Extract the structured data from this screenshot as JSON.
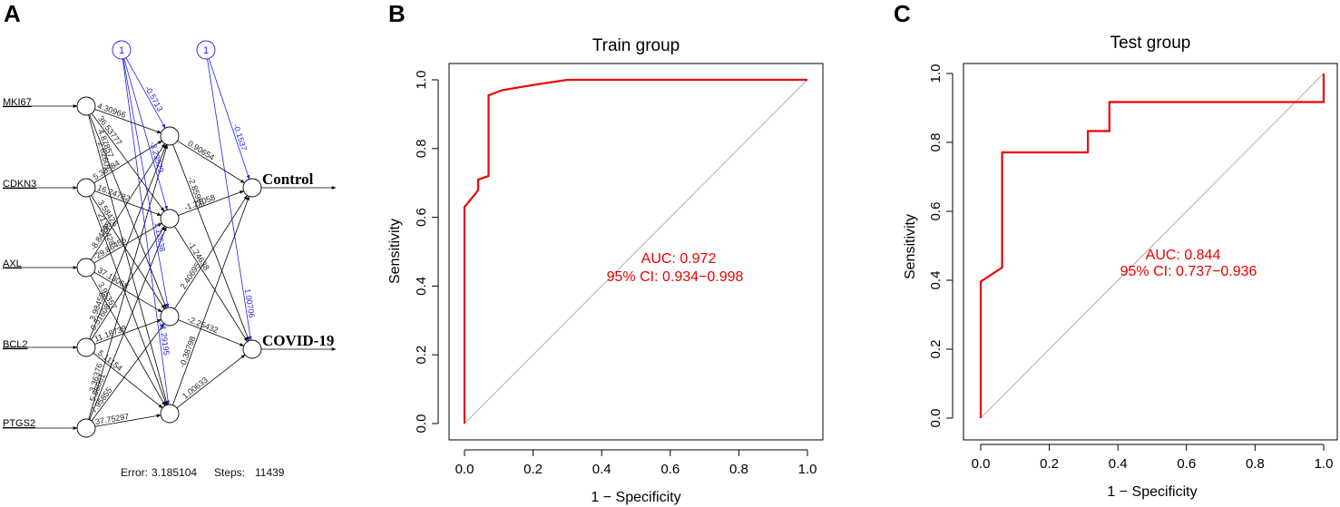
{
  "panels": {
    "a": "A",
    "b": "B",
    "c": "C"
  },
  "network": {
    "inputs": [
      "MKI67",
      "CDKN3",
      "AXL",
      "BCL2",
      "PTGS2"
    ],
    "outputs": [
      "Control",
      "COVID-19"
    ],
    "bias_label": "1",
    "hidden_count": 4,
    "weights_input_hidden": [
      [
        "4.30966",
        "36.53777",
        "4.87857",
        "2.62601"
      ],
      [
        "5.36384",
        "16.24782",
        "3.58426",
        "21.95428"
      ],
      [
        "-8.84295",
        "-29.86456",
        "37.13068",
        "3.95357"
      ],
      [
        "3.98459",
        "0.51608",
        "11.18739",
        "5.11154"
      ],
      [
        "3.36376",
        "5.56061",
        "7.95855",
        "37.75297"
      ]
    ],
    "bias_hidden": [
      "-0.5713",
      "-3.23529",
      "1.12638",
      "11.29195"
    ],
    "weights_hidden_output": [
      [
        "0.90654",
        "-2.85996"
      ],
      [
        "-1.27058",
        "-1.24638"
      ],
      [
        "2.40695",
        "-2.25432"
      ],
      [
        "-0.38798",
        "1.00633"
      ]
    ],
    "bias_output": [
      "-0.1537",
      "1.00706"
    ],
    "error_label": "Error:",
    "error": "3.185104",
    "steps_label": "Steps:",
    "steps": "11439"
  },
  "chart_data": [
    {
      "type": "line",
      "title": "Train group",
      "xlabel": "1 − Specificity",
      "ylabel": "Sensitivity",
      "xlim": [
        0,
        1
      ],
      "ylim": [
        0,
        1
      ],
      "xticks": [
        "0.0",
        "0.2",
        "0.4",
        "0.6",
        "0.8",
        "1.0"
      ],
      "yticks": [
        "0.0",
        "0.2",
        "0.4",
        "0.6",
        "0.8",
        "1.0"
      ],
      "series": [
        {
          "name": "ROC",
          "color": "#ee0000",
          "x": [
            0,
            0,
            0.033,
            0.04,
            0.04,
            0.07,
            0.07,
            0.11,
            0.2,
            0.3,
            1.0
          ],
          "y": [
            0,
            0.63,
            0.67,
            0.68,
            0.71,
            0.72,
            0.955,
            0.97,
            0.985,
            1.0,
            1.0
          ]
        },
        {
          "name": "reference",
          "color": "#b0b0b0",
          "x": [
            0,
            1
          ],
          "y": [
            0,
            1
          ]
        }
      ],
      "annotations": [
        "AUC: 0.972",
        "95% CI: 0.934−0.998"
      ]
    },
    {
      "type": "line",
      "title": "Test group",
      "xlabel": "1 − Specificity",
      "ylabel": "Sensitivity",
      "xlim": [
        0,
        1
      ],
      "ylim": [
        0,
        1
      ],
      "xticks": [
        "0.0",
        "0.2",
        "0.4",
        "0.6",
        "0.8",
        "1.0"
      ],
      "yticks": [
        "0.0",
        "0.2",
        "0.4",
        "0.6",
        "0.8",
        "1.0"
      ],
      "series": [
        {
          "name": "ROC",
          "color": "#ee0000",
          "x": [
            0,
            0,
            0.0625,
            0.0625,
            0.3125,
            0.3125,
            0.375,
            0.375,
            1.0,
            1.0
          ],
          "y": [
            0,
            0.396,
            0.437,
            0.771,
            0.771,
            0.833,
            0.833,
            0.917,
            0.917,
            1.0
          ]
        },
        {
          "name": "reference",
          "color": "#b0b0b0",
          "x": [
            0,
            1
          ],
          "y": [
            0,
            1
          ]
        }
      ],
      "annotations": [
        "AUC: 0.844",
        "95% CI: 0.737−0.936"
      ]
    }
  ]
}
